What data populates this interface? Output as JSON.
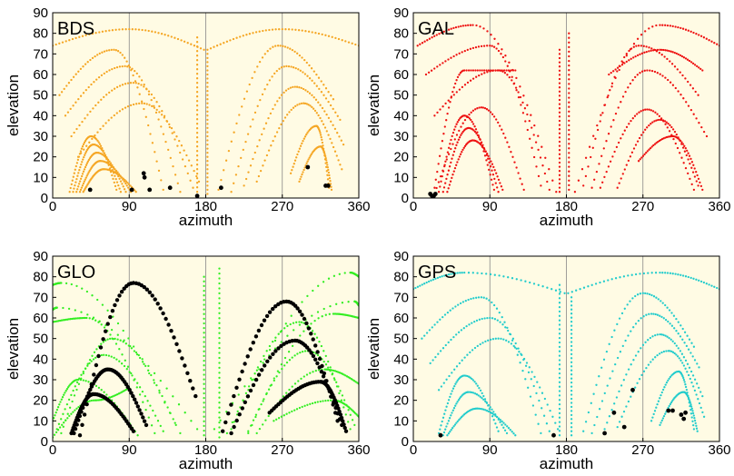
{
  "figure": {
    "description_title": "",
    "colors": {
      "plot_background": "#fffbe4",
      "vertical_gridlines": "#888888",
      "highlight_points": "#000000"
    }
  },
  "chart_data": [
    {
      "type": "scatter",
      "panel_label": "BDS",
      "xlabel": "azimuth",
      "ylabel": "elevation",
      "xlim": [
        0,
        360
      ],
      "ylim": [
        0,
        90
      ],
      "x_ticks": [
        0,
        90,
        180,
        270,
        360
      ],
      "y_ticks": [
        0,
        10,
        20,
        30,
        40,
        50,
        60,
        70,
        80,
        90
      ],
      "grid": "vertical lines at 90, 180, 270",
      "legend": "none",
      "series": [
        {
          "color": "#f5a623",
          "arcs": [
            {
              "x_start": 0,
              "x_peak": 90,
              "x_end": 178,
              "y_start": 74,
              "y_peak": 82,
              "y_end": 72
            },
            {
              "x_start": 182,
              "x_peak": 270,
              "x_end": 360,
              "y_start": 72,
              "y_peak": 82,
              "y_end": 74
            },
            {
              "x_start": 8,
              "x_peak": 72,
              "x_end": 130,
              "y_start": 50,
              "y_peak": 72,
              "y_end": 4
            },
            {
              "x_start": 15,
              "x_peak": 85,
              "x_end": 150,
              "y_start": 40,
              "y_peak": 64,
              "y_end": 3
            },
            {
              "x_start": 22,
              "x_peak": 95,
              "x_end": 165,
              "y_start": 30,
              "y_peak": 56,
              "y_end": 5
            },
            {
              "x_start": 30,
              "x_peak": 105,
              "x_end": 172,
              "y_start": 20,
              "y_peak": 46,
              "y_end": 8
            },
            {
              "x_start": 195,
              "x_peak": 265,
              "x_end": 330,
              "y_start": 4,
              "y_peak": 74,
              "y_end": 48
            },
            {
              "x_start": 210,
              "x_peak": 275,
              "x_end": 338,
              "y_start": 3,
              "y_peak": 64,
              "y_end": 38
            },
            {
              "x_start": 225,
              "x_peak": 285,
              "x_end": 342,
              "y_start": 6,
              "y_peak": 54,
              "y_end": 26
            },
            {
              "x_start": 240,
              "x_peak": 295,
              "x_end": 340,
              "y_start": 8,
              "y_peak": 46,
              "y_end": 14
            },
            {
              "x_start": 20,
              "x_peak": 45,
              "x_end": 75,
              "y_start": 3,
              "y_peak": 30,
              "y_end": 4
            },
            {
              "x_start": 24,
              "x_peak": 48,
              "x_end": 80,
              "y_start": 3,
              "y_peak": 26,
              "y_end": 3
            },
            {
              "x_start": 28,
              "x_peak": 52,
              "x_end": 86,
              "y_start": 3,
              "y_peak": 22,
              "y_end": 3
            },
            {
              "x_start": 32,
              "x_peak": 56,
              "x_end": 92,
              "y_start": 3,
              "y_peak": 18,
              "y_end": 3
            },
            {
              "x_start": 36,
              "x_peak": 60,
              "x_end": 98,
              "y_start": 3,
              "y_peak": 14,
              "y_end": 3
            },
            {
              "x_start": 280,
              "x_peak": 310,
              "x_end": 325,
              "y_start": 12,
              "y_peak": 35,
              "y_end": 5
            },
            {
              "x_start": 290,
              "x_peak": 315,
              "x_end": 328,
              "y_start": 8,
              "y_peak": 25,
              "y_end": 4
            }
          ],
          "vertical_tracks": [
            {
              "x": 170,
              "y_from": 3,
              "y_to": 78
            },
            {
              "x": 182,
              "y_from": 2,
              "y_to": 70
            }
          ]
        },
        {
          "color": "#000000",
          "points": [
            [
              44,
              4
            ],
            [
              93,
              4
            ],
            [
              114,
              4
            ],
            [
              138,
              5
            ],
            [
              170,
              1
            ],
            [
              198,
              5
            ],
            [
              107,
              12
            ],
            [
              108,
              10
            ],
            [
              300,
              15
            ],
            [
              321,
              6
            ],
            [
              324,
              6
            ]
          ]
        }
      ]
    },
    {
      "type": "scatter",
      "panel_label": "GAL",
      "xlabel": "azimuth",
      "ylabel": "elevation",
      "xlim": [
        0,
        360
      ],
      "ylim": [
        0,
        90
      ],
      "x_ticks": [
        0,
        90,
        180,
        270,
        360
      ],
      "y_ticks": [
        0,
        10,
        20,
        30,
        40,
        50,
        60,
        70,
        80,
        90
      ],
      "grid": "vertical lines at 90, 180, 270",
      "legend": "none",
      "series": [
        {
          "color": "#ee1111",
          "arcs": [
            {
              "x_start": 5,
              "x_peak": 70,
              "x_end": 168,
              "y_start": 74,
              "y_peak": 84,
              "y_end": 3
            },
            {
              "x_start": 190,
              "x_peak": 290,
              "x_end": 360,
              "y_start": 3,
              "y_peak": 84,
              "y_end": 74
            },
            {
              "x_start": 15,
              "x_peak": 90,
              "x_end": 150,
              "y_start": 60,
              "y_peak": 74,
              "y_end": 6
            },
            {
              "x_start": 25,
              "x_peak": 100,
              "x_end": 160,
              "y_start": 40,
              "y_peak": 62,
              "y_end": 4
            },
            {
              "x_start": 200,
              "x_peak": 265,
              "x_end": 335,
              "y_start": 6,
              "y_peak": 74,
              "y_end": 50
            },
            {
              "x_start": 210,
              "x_peak": 275,
              "x_end": 345,
              "y_start": 5,
              "y_peak": 62,
              "y_end": 30
            },
            {
              "x_start": 25,
              "x_peak": 80,
              "x_end": 130,
              "y_start": 2,
              "y_peak": 44,
              "y_end": 4
            },
            {
              "x_start": 30,
              "x_peak": 60,
              "x_end": 95,
              "y_start": 3,
              "y_peak": 40,
              "y_end": 4
            },
            {
              "x_start": 35,
              "x_peak": 65,
              "x_end": 100,
              "y_start": 3,
              "y_peak": 34,
              "y_end": 3
            },
            {
              "x_start": 40,
              "x_peak": 70,
              "x_end": 105,
              "y_start": 3,
              "y_peak": 28,
              "y_end": 4
            },
            {
              "x_start": 220,
              "x_peak": 275,
              "x_end": 330,
              "y_start": 5,
              "y_peak": 43,
              "y_end": 4
            },
            {
              "x_start": 240,
              "x_peak": 290,
              "x_end": 335,
              "y_start": 5,
              "y_peak": 38,
              "y_end": 6
            },
            {
              "x_start": 265,
              "x_peak": 305,
              "x_end": 340,
              "y_start": 18,
              "y_peak": 30,
              "y_end": 4
            },
            {
              "x_start": 25,
              "x_peak": 60,
              "x_end": 120,
              "y_start": 5,
              "y_peak": 62,
              "y_end": 62
            },
            {
              "x_start": 230,
              "x_peak": 290,
              "x_end": 340,
              "y_start": 60,
              "y_peak": 72,
              "y_end": 62
            }
          ],
          "vertical_tracks": [
            {
              "x": 172,
              "y_from": 3,
              "y_to": 72
            },
            {
              "x": 183,
              "y_from": 4,
              "y_to": 80
            }
          ]
        },
        {
          "color": "#000000",
          "points": [
            [
              20,
              2
            ],
            [
              22,
              1
            ],
            [
              24,
              1
            ],
            [
              26,
              2
            ]
          ]
        }
      ]
    },
    {
      "type": "scatter",
      "panel_label": "GLO",
      "xlabel": "azimuth",
      "ylabel": "elevation",
      "xlim": [
        0,
        360
      ],
      "ylim": [
        0,
        90
      ],
      "x_ticks": [
        0,
        90,
        180,
        270,
        360
      ],
      "y_ticks": [
        0,
        10,
        20,
        30,
        40,
        50,
        60,
        70,
        80,
        90
      ],
      "grid": "vertical lines at 90, 180, 270",
      "legend": "none",
      "series": [
        {
          "color": "#33ee22",
          "arcs": [
            {
              "x_start": 0,
              "x_peak": 5,
              "x_end": 170,
              "y_start": 64,
              "y_peak": 65,
              "y_end": 6
            },
            {
              "x_start": 0,
              "x_peak": 10,
              "x_end": 150,
              "y_start": 76,
              "y_peak": 77,
              "y_end": 4
            },
            {
              "x_start": 0,
              "x_peak": 40,
              "x_end": 120,
              "y_start": 58,
              "y_peak": 60,
              "y_end": 4
            },
            {
              "x_start": 190,
              "x_peak": 355,
              "x_end": 360,
              "y_start": 6,
              "y_peak": 68,
              "y_end": 66
            },
            {
              "x_start": 205,
              "x_peak": 350,
              "x_end": 360,
              "y_start": 4,
              "y_peak": 82,
              "y_end": 80
            },
            {
              "x_start": 230,
              "x_peak": 330,
              "x_end": 360,
              "y_start": 4,
              "y_peak": 62,
              "y_end": 60
            },
            {
              "x_start": 5,
              "x_peak": 60,
              "x_end": 130,
              "y_start": 6,
              "y_peak": 42,
              "y_end": 5
            },
            {
              "x_start": 10,
              "x_peak": 70,
              "x_end": 145,
              "y_start": 4,
              "y_peak": 50,
              "y_end": 8
            },
            {
              "x_start": 0,
              "x_peak": 30,
              "x_end": 100,
              "y_start": 10,
              "y_peak": 30,
              "y_end": 3
            },
            {
              "x_start": 210,
              "x_peak": 290,
              "x_end": 350,
              "y_start": 6,
              "y_peak": 58,
              "y_end": 6
            },
            {
              "x_start": 230,
              "x_peak": 300,
              "x_end": 355,
              "y_start": 5,
              "y_peak": 44,
              "y_end": 8
            },
            {
              "x_start": 240,
              "x_peak": 320,
              "x_end": 360,
              "y_start": 4,
              "y_peak": 35,
              "y_end": 28
            },
            {
              "x_start": 0,
              "x_peak": 50,
              "x_end": 90,
              "y_start": 2,
              "y_peak": 20,
              "y_end": 26
            },
            {
              "x_start": 260,
              "x_peak": 330,
              "x_end": 360,
              "y_start": 10,
              "y_peak": 20,
              "y_end": 12
            }
          ],
          "vertical_tracks": [
            {
              "x": 178,
              "y_from": 3,
              "y_to": 80
            },
            {
              "x": 196,
              "y_from": 2,
              "y_to": 84
            }
          ]
        },
        {
          "color": "#000000",
          "arcs": [
            {
              "x_start": 32,
              "x_peak": 95,
              "x_end": 168,
              "y_start": 3,
              "y_peak": 77,
              "y_end": 22
            },
            {
              "x_start": 25,
              "x_peak": 65,
              "x_end": 110,
              "y_start": 4,
              "y_peak": 35,
              "y_end": 8
            },
            {
              "x_start": 22,
              "x_peak": 48,
              "x_end": 95,
              "y_start": 4,
              "y_peak": 23,
              "y_end": 5
            },
            {
              "x_start": 200,
              "x_peak": 275,
              "x_end": 335,
              "y_start": 5,
              "y_peak": 68,
              "y_end": 10
            },
            {
              "x_start": 210,
              "x_peak": 285,
              "x_end": 340,
              "y_start": 4,
              "y_peak": 49,
              "y_end": 8
            },
            {
              "x_start": 255,
              "x_peak": 315,
              "x_end": 345,
              "y_start": 14,
              "y_peak": 29,
              "y_end": 5
            }
          ]
        }
      ]
    },
    {
      "type": "scatter",
      "panel_label": "GPS",
      "xlabel": "azimuth",
      "ylabel": "elevation",
      "xlim": [
        0,
        360
      ],
      "ylim": [
        0,
        90
      ],
      "x_ticks": [
        0,
        90,
        180,
        270,
        360
      ],
      "y_ticks": [
        0,
        10,
        20,
        30,
        40,
        50,
        60,
        70,
        80,
        90
      ],
      "grid": "vertical lines at 90, 180, 270",
      "legend": "none",
      "series": [
        {
          "color": "#22cccc",
          "arcs": [
            {
              "x_start": 0,
              "x_peak": 60,
              "x_end": 178,
              "y_start": 74,
              "y_peak": 82,
              "y_end": 72
            },
            {
              "x_start": 182,
              "x_peak": 290,
              "x_end": 360,
              "y_start": 72,
              "y_peak": 82,
              "y_end": 74
            },
            {
              "x_start": 10,
              "x_peak": 80,
              "x_end": 150,
              "y_start": 50,
              "y_peak": 70,
              "y_end": 4
            },
            {
              "x_start": 20,
              "x_peak": 90,
              "x_end": 160,
              "y_start": 38,
              "y_peak": 60,
              "y_end": 5
            },
            {
              "x_start": 30,
              "x_peak": 100,
              "x_end": 170,
              "y_start": 25,
              "y_peak": 50,
              "y_end": 6
            },
            {
              "x_start": 200,
              "x_peak": 270,
              "x_end": 330,
              "y_start": 5,
              "y_peak": 72,
              "y_end": 46
            },
            {
              "x_start": 210,
              "x_peak": 280,
              "x_end": 336,
              "y_start": 4,
              "y_peak": 62,
              "y_end": 36
            },
            {
              "x_start": 225,
              "x_peak": 290,
              "x_end": 340,
              "y_start": 6,
              "y_peak": 52,
              "y_end": 22
            },
            {
              "x_start": 240,
              "x_peak": 300,
              "x_end": 342,
              "y_start": 7,
              "y_peak": 44,
              "y_end": 12
            },
            {
              "x_start": 30,
              "x_peak": 60,
              "x_end": 100,
              "y_start": 4,
              "y_peak": 32,
              "y_end": 5
            },
            {
              "x_start": 35,
              "x_peak": 65,
              "x_end": 110,
              "y_start": 3,
              "y_peak": 24,
              "y_end": 4
            },
            {
              "x_start": 40,
              "x_peak": 75,
              "x_end": 120,
              "y_start": 3,
              "y_peak": 16,
              "y_end": 3
            },
            {
              "x_start": 280,
              "x_peak": 312,
              "x_end": 330,
              "y_start": 10,
              "y_peak": 34,
              "y_end": 6
            },
            {
              "x_start": 290,
              "x_peak": 318,
              "x_end": 334,
              "y_start": 8,
              "y_peak": 24,
              "y_end": 5
            }
          ],
          "vertical_tracks": [
            {
              "x": 172,
              "y_from": 3,
              "y_to": 76
            },
            {
              "x": 186,
              "y_from": 3,
              "y_to": 70
            }
          ]
        },
        {
          "color": "#000000",
          "points": [
            [
              32,
              3
            ],
            [
              165,
              3
            ],
            [
              225,
              4
            ],
            [
              236,
              14
            ],
            [
              248,
              7
            ],
            [
              258,
              25
            ],
            [
              300,
              15
            ],
            [
              305,
              15
            ],
            [
              315,
              13
            ],
            [
              320,
              14
            ],
            [
              318,
              11
            ]
          ]
        }
      ]
    }
  ]
}
